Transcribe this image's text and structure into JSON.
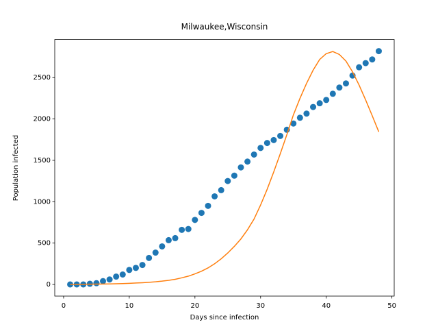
{
  "chart_data": {
    "type": "scatter",
    "title": "Milwaukee,Wisconsin",
    "x_label": "Days since infection",
    "y_label": "Population infected",
    "x": [
      1,
      2,
      3,
      4,
      5,
      6,
      7,
      8,
      9,
      10,
      11,
      12,
      13,
      14,
      15,
      16,
      17,
      18,
      19,
      20,
      21,
      22,
      23,
      24,
      25,
      26,
      27,
      28,
      29,
      30,
      31,
      32,
      33,
      34,
      35,
      36,
      37,
      38,
      39,
      40,
      41,
      42,
      43,
      44,
      45,
      46,
      47,
      48
    ],
    "series": [
      {
        "type": "scatter",
        "color": "#1f77b4",
        "values": [
          0,
          0,
          0,
          8,
          15,
          40,
          60,
          95,
          120,
          175,
          200,
          235,
          320,
          385,
          460,
          535,
          560,
          660,
          670,
          780,
          865,
          950,
          1065,
          1140,
          1250,
          1315,
          1415,
          1485,
          1570,
          1650,
          1710,
          1745,
          1795,
          1870,
          1945,
          2015,
          2065,
          2145,
          2190,
          2230,
          2305,
          2380,
          2430,
          2525,
          2625,
          2675,
          2720,
          2820
        ]
      },
      {
        "type": "line",
        "color": "#ff7f0e",
        "values": [
          1,
          2,
          2,
          3,
          4,
          5,
          6,
          8,
          10,
          13,
          17,
          21,
          26,
          32,
          40,
          50,
          62,
          80,
          100,
          128,
          160,
          200,
          250,
          310,
          380,
          460,
          550,
          660,
          790,
          960,
          1150,
          1360,
          1580,
          1810,
          2050,
          2250,
          2430,
          2590,
          2720,
          2790,
          2815,
          2780,
          2700,
          2570,
          2410,
          2230,
          2040,
          1845
        ]
      }
    ],
    "xlim": [
      -1.35,
      50.35
    ],
    "ylim": [
      -141,
      2961
    ],
    "xticks": [
      0,
      10,
      20,
      30,
      40,
      50
    ],
    "yticks": [
      0,
      500,
      1000,
      1500,
      2000,
      2500
    ],
    "grid": false
  }
}
